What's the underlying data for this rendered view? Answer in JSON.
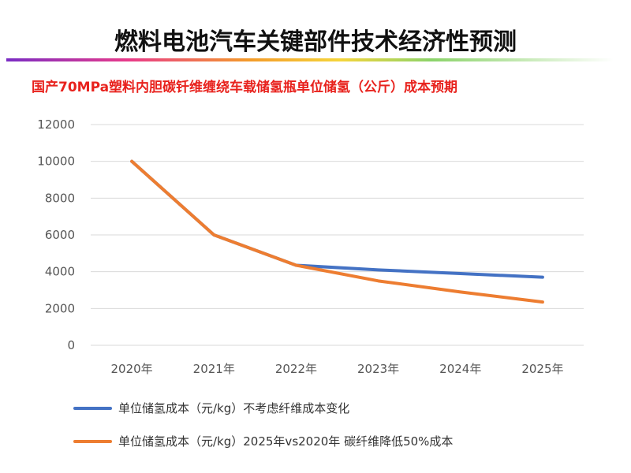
{
  "slide": {
    "title": "燃料电池汽车关键部件技术经济性预测"
  },
  "chart_data": {
    "type": "line",
    "title": "国产70MPa塑料内胆碳钎维缠绕车载储氢瓶单位储氢（公斤）成本预期",
    "categories": [
      "2020年",
      "2021年",
      "2022年",
      "2023年",
      "2024年",
      "2025年"
    ],
    "ylim": [
      0,
      12000
    ],
    "yticks": [
      0,
      2000,
      4000,
      6000,
      8000,
      10000,
      12000
    ],
    "grid": true,
    "legend_position": "bottom",
    "series": [
      {
        "name": "单位储氢成本（元/kg）不考虑纤维成本变化",
        "color": "#4472c4",
        "values": [
          10000,
          6000,
          4350,
          4100,
          3900,
          3700
        ]
      },
      {
        "name": "单位储氢成本（元/kg）2025年vs2020年 碳纤维降低50%成本",
        "color": "#ed7d31",
        "values": [
          10000,
          6000,
          4350,
          3500,
          2900,
          2350
        ]
      }
    ]
  }
}
